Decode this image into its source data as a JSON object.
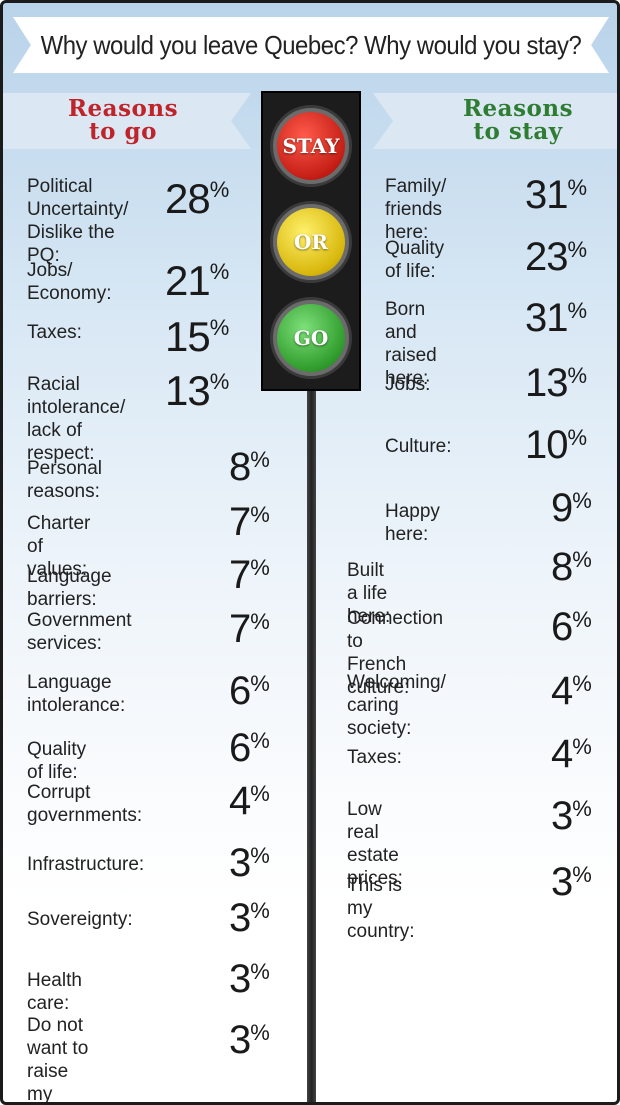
{
  "title": "Why would you leave Quebec? Why would you stay?",
  "colors": {
    "go_heading": "#c0242b",
    "stay_heading": "#2e7d32"
  },
  "go_heading": "Reasons\nto go",
  "stay_heading": "Reasons\nto stay",
  "traffic_light": {
    "top": "STAY",
    "middle": "OR",
    "bottom": "GO"
  },
  "reasons_to_go": [
    {
      "label": "Political\nUncertainty/\nDislike the PQ:",
      "value": "28"
    },
    {
      "label": "Jobs/\nEconomy:",
      "value": "21"
    },
    {
      "label": "Taxes:",
      "value": "15"
    },
    {
      "label": "Racial\nintolerance/\nlack of respect:",
      "value": "13"
    },
    {
      "label": "Personal reasons:",
      "value": "8"
    },
    {
      "label": "Charter of values:",
      "value": "7"
    },
    {
      "label": "Language barriers:",
      "value": "7"
    },
    {
      "label": "Government\nservices:",
      "value": "7"
    },
    {
      "label": "Language\nintolerance:",
      "value": "6"
    },
    {
      "label": "Quality of life:",
      "value": "6"
    },
    {
      "label": "Corrupt\ngovernments:",
      "value": "4"
    },
    {
      "label": "Infrastructure:",
      "value": "3"
    },
    {
      "label": "Sovereignty:",
      "value": "3"
    },
    {
      "label": "Health care:",
      "value": "3"
    },
    {
      "label": "Do not want to\nraise my children\nhere:",
      "value": "3"
    }
  ],
  "reasons_to_stay": [
    {
      "label": "Family/\nfriends here:",
      "value": "31"
    },
    {
      "label": "Quality\nof life:",
      "value": "23"
    },
    {
      "label": "Born and\nraised here:",
      "value": "31"
    },
    {
      "label": "Jobs:",
      "value": "13"
    },
    {
      "label": "Culture:",
      "value": "10"
    },
    {
      "label": "Happy here:",
      "value": "9"
    },
    {
      "label": "Built a life here:",
      "value": "8"
    },
    {
      "label": "Connection to\nFrench culture:",
      "value": "6"
    },
    {
      "label": "Welcoming/\ncaring society:",
      "value": "4"
    },
    {
      "label": "Taxes:",
      "value": "4"
    },
    {
      "label": "Low real estate\nprices:",
      "value": "3"
    },
    {
      "label": "This is my country:",
      "value": "3"
    }
  ],
  "percent_sign": "%"
}
